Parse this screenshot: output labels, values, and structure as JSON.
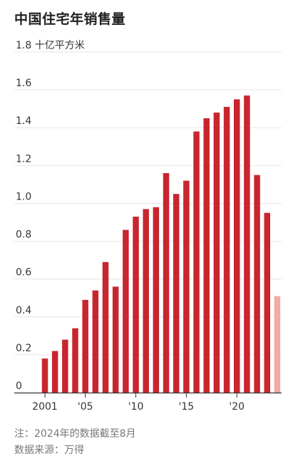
{
  "title": "中国住宅年销售量",
  "y_unit_label": "十亿平方米",
  "note": "注：2024年的数据截至8月",
  "source": "数据来源：万得",
  "colors": {
    "bar": "#c8262f",
    "bar_partial": "#f3aaa0",
    "grid": "#e6e6e6",
    "axis": "#333333"
  },
  "chart_data": {
    "type": "bar",
    "title": "中国住宅年销售量",
    "ylabel": "十亿平方米",
    "xlabel": "",
    "ylim": [
      0,
      1.8
    ],
    "y_ticks": [
      0,
      0.2,
      0.4,
      0.6,
      0.8,
      1.0,
      1.2,
      1.4,
      1.6,
      1.8
    ],
    "y_tick_labels": [
      "0",
      "0.2",
      "0.4",
      "0.6",
      "0.8",
      "1.0",
      "1.2",
      "1.4",
      "1.6",
      "1.8"
    ],
    "grid": true,
    "categories": [
      2001,
      2002,
      2003,
      2004,
      2005,
      2006,
      2007,
      2008,
      2009,
      2010,
      2011,
      2012,
      2013,
      2014,
      2015,
      2016,
      2017,
      2018,
      2019,
      2020,
      2021,
      2022,
      2023,
      2024
    ],
    "values": [
      0.18,
      0.22,
      0.28,
      0.34,
      0.49,
      0.54,
      0.69,
      0.56,
      0.86,
      0.93,
      0.97,
      0.98,
      1.16,
      1.05,
      1.12,
      1.38,
      1.45,
      1.48,
      1.51,
      1.55,
      1.57,
      1.15,
      0.95,
      0.51
    ],
    "partial_year": 2024,
    "x_tick_years": [
      2001,
      2005,
      2010,
      2015,
      2020
    ],
    "x_tick_labels": [
      "2001",
      "'05",
      "'10",
      "'15",
      "'20"
    ]
  }
}
